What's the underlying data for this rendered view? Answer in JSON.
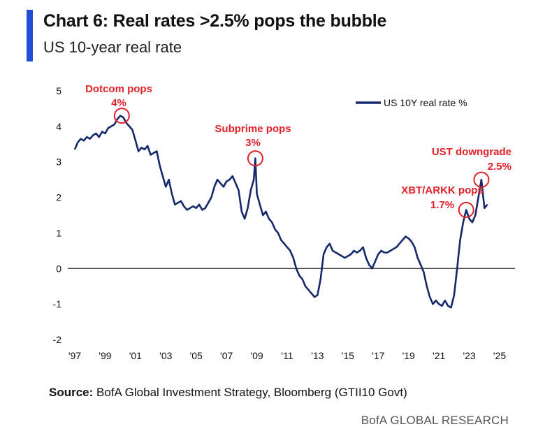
{
  "header": {
    "title": "Chart 6: Real rates >2.5% pops the bubble",
    "subtitle": "US 10-year real rate"
  },
  "colors": {
    "accent": "#1f4fd6",
    "series": "#15296b",
    "annotation": "#e3212a"
  },
  "footer": {
    "source_label": "Source:",
    "source_text": "BofA Global Investment Strategy, Bloomberg (GTII10 Govt)",
    "brand": "BofA GLOBAL RESEARCH"
  },
  "chart_data": {
    "type": "line",
    "title": "Chart 6: Real rates >2.5% pops the bubble",
    "subtitle": "US 10-year real rate",
    "xlabel": "",
    "ylabel": "",
    "xlim": [
      1997,
      2026
    ],
    "ylim": [
      -2,
      5
    ],
    "grid": false,
    "legend_position": "top-right",
    "x_tick_values": [
      1997,
      1999,
      2001,
      2003,
      2005,
      2007,
      2009,
      2011,
      2013,
      2015,
      2017,
      2019,
      2021,
      2023,
      2025
    ],
    "x_tick_labels": [
      "'97",
      "'99",
      "'01",
      "'03",
      "'05",
      "'07",
      "'09",
      "'11",
      "'13",
      "'15",
      "'17",
      "'19",
      "'21",
      "'23",
      "'25"
    ],
    "y_tick_values": [
      5,
      4,
      3,
      2,
      1,
      0,
      -1,
      -2
    ],
    "y_tick_labels": [
      "5",
      "4",
      "3",
      "2",
      "1",
      "0",
      "-1",
      "-2"
    ],
    "series": [
      {
        "name": "US 10Y real rate %",
        "x": [
          1997.0,
          1997.2,
          1997.4,
          1997.6,
          1997.8,
          1998.0,
          1998.2,
          1998.4,
          1998.6,
          1998.8,
          1999.0,
          1999.2,
          1999.4,
          1999.6,
          1999.8,
          2000.0,
          2000.2,
          2000.4,
          2000.6,
          2000.8,
          2001.0,
          2001.2,
          2001.4,
          2001.6,
          2001.8,
          2002.0,
          2002.2,
          2002.4,
          2002.6,
          2002.8,
          2003.0,
          2003.2,
          2003.4,
          2003.6,
          2003.8,
          2004.0,
          2004.2,
          2004.4,
          2004.6,
          2004.8,
          2005.0,
          2005.2,
          2005.4,
          2005.6,
          2005.8,
          2006.0,
          2006.2,
          2006.4,
          2006.6,
          2006.8,
          2007.0,
          2007.2,
          2007.4,
          2007.6,
          2007.8,
          2008.0,
          2008.2,
          2008.4,
          2008.6,
          2008.8,
          2008.9,
          2009.0,
          2009.2,
          2009.4,
          2009.6,
          2009.8,
          2010.0,
          2010.2,
          2010.4,
          2010.6,
          2010.8,
          2011.0,
          2011.2,
          2011.4,
          2011.6,
          2011.8,
          2012.0,
          2012.2,
          2012.4,
          2012.6,
          2012.8,
          2013.0,
          2013.2,
          2013.4,
          2013.6,
          2013.8,
          2014.0,
          2014.2,
          2014.4,
          2014.6,
          2014.8,
          2015.0,
          2015.2,
          2015.4,
          2015.6,
          2015.8,
          2016.0,
          2016.2,
          2016.4,
          2016.6,
          2016.8,
          2017.0,
          2017.2,
          2017.4,
          2017.6,
          2017.8,
          2018.0,
          2018.2,
          2018.4,
          2018.6,
          2018.8,
          2019.0,
          2019.2,
          2019.4,
          2019.6,
          2019.8,
          2020.0,
          2020.2,
          2020.4,
          2020.6,
          2020.8,
          2021.0,
          2021.2,
          2021.4,
          2021.6,
          2021.8,
          2022.0,
          2022.2,
          2022.4,
          2022.6,
          2022.8,
          2023.0,
          2023.2,
          2023.4,
          2023.6,
          2023.8,
          2024.0,
          2024.2
        ],
        "values": [
          3.35,
          3.55,
          3.65,
          3.6,
          3.7,
          3.65,
          3.75,
          3.8,
          3.7,
          3.85,
          3.8,
          3.95,
          4.0,
          4.05,
          4.2,
          4.3,
          4.25,
          4.1,
          4.0,
          3.9,
          3.6,
          3.3,
          3.4,
          3.35,
          3.45,
          3.2,
          3.25,
          3.3,
          2.9,
          2.6,
          2.3,
          2.5,
          2.1,
          1.8,
          1.85,
          1.9,
          1.75,
          1.65,
          1.7,
          1.75,
          1.7,
          1.8,
          1.65,
          1.7,
          1.85,
          2.0,
          2.3,
          2.5,
          2.4,
          2.3,
          2.45,
          2.5,
          2.6,
          2.4,
          2.2,
          1.6,
          1.4,
          1.7,
          2.2,
          2.5,
          3.1,
          2.1,
          1.8,
          1.5,
          1.6,
          1.4,
          1.3,
          1.1,
          1.0,
          0.8,
          0.7,
          0.6,
          0.5,
          0.3,
          0.0,
          -0.2,
          -0.3,
          -0.5,
          -0.6,
          -0.7,
          -0.8,
          -0.75,
          -0.3,
          0.4,
          0.6,
          0.7,
          0.5,
          0.45,
          0.4,
          0.35,
          0.3,
          0.35,
          0.4,
          0.5,
          0.45,
          0.5,
          0.6,
          0.3,
          0.1,
          0.0,
          0.2,
          0.4,
          0.5,
          0.45,
          0.45,
          0.5,
          0.55,
          0.6,
          0.7,
          0.8,
          0.9,
          0.85,
          0.75,
          0.6,
          0.3,
          0.1,
          -0.1,
          -0.5,
          -0.8,
          -1.0,
          -0.9,
          -1.0,
          -1.05,
          -0.9,
          -1.05,
          -1.1,
          -0.75,
          0.0,
          0.8,
          1.3,
          1.65,
          1.4,
          1.3,
          1.5,
          2.0,
          2.5,
          1.7,
          1.8
        ]
      }
    ],
    "annotations": [
      {
        "label": "Dotcom pops",
        "value_label": "4%",
        "x": 2000.1,
        "y": 4.3
      },
      {
        "label": "Subprime pops",
        "value_label": "3%",
        "x": 2008.9,
        "y": 3.1
      },
      {
        "label": "XBT/ARKK pops",
        "value_label": "1.7%",
        "x": 2022.8,
        "y": 1.65
      },
      {
        "label": "UST downgrade",
        "value_label": "2.5%",
        "x": 2023.8,
        "y": 2.5
      }
    ]
  }
}
